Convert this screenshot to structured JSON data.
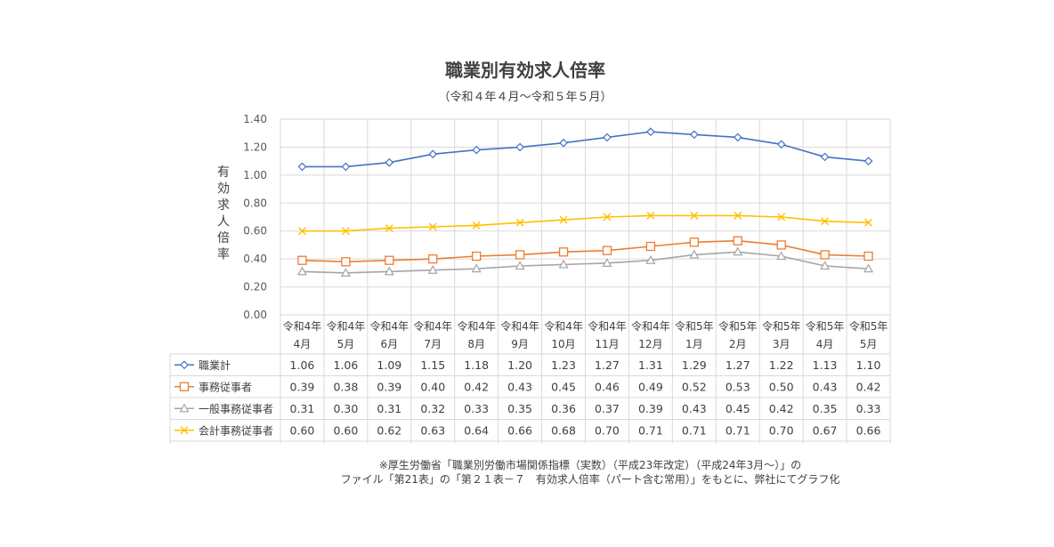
{
  "chart_data": {
    "type": "line",
    "title": "職業別有効求人倍率",
    "subtitle": "（令和４年４月～令和５年５月）",
    "ylabel": "有効求人倍率",
    "ylim": [
      0,
      1.4
    ],
    "yticks": [
      "0.00",
      "0.20",
      "0.40",
      "0.60",
      "0.80",
      "1.00",
      "1.20",
      "1.40"
    ],
    "categories": [
      [
        "令和4年",
        "4月"
      ],
      [
        "令和4年",
        "5月"
      ],
      [
        "令和4年",
        "6月"
      ],
      [
        "令和4年",
        "7月"
      ],
      [
        "令和4年",
        "8月"
      ],
      [
        "令和4年",
        "9月"
      ],
      [
        "令和4年",
        "10月"
      ],
      [
        "令和4年",
        "11月"
      ],
      [
        "令和4年",
        "12月"
      ],
      [
        "令和5年",
        "1月"
      ],
      [
        "令和5年",
        "2月"
      ],
      [
        "令和5年",
        "3月"
      ],
      [
        "令和5年",
        "4月"
      ],
      [
        "令和5年",
        "5月"
      ]
    ],
    "series": [
      {
        "name": "職業計",
        "color": "#4472C4",
        "marker": "diamond",
        "values": [
          1.06,
          1.06,
          1.09,
          1.15,
          1.18,
          1.2,
          1.23,
          1.27,
          1.31,
          1.29,
          1.27,
          1.22,
          1.13,
          1.1
        ],
        "labels": [
          "1.06",
          "1.06",
          "1.09",
          "1.15",
          "1.18",
          "1.20",
          "1.23",
          "1.27",
          "1.31",
          "1.29",
          "1.27",
          "1.22",
          "1.13",
          "1.10"
        ]
      },
      {
        "name": "事務従事者",
        "color": "#ED7D31",
        "marker": "square",
        "values": [
          0.39,
          0.38,
          0.39,
          0.4,
          0.42,
          0.43,
          0.45,
          0.46,
          0.49,
          0.52,
          0.53,
          0.5,
          0.43,
          0.42
        ],
        "labels": [
          "0.39",
          "0.38",
          "0.39",
          "0.40",
          "0.42",
          "0.43",
          "0.45",
          "0.46",
          "0.49",
          "0.52",
          "0.53",
          "0.50",
          "0.43",
          "0.42"
        ]
      },
      {
        "name": "一般事務従事者",
        "color": "#A5A5A5",
        "marker": "triangle",
        "values": [
          0.31,
          0.3,
          0.31,
          0.32,
          0.33,
          0.35,
          0.36,
          0.37,
          0.39,
          0.43,
          0.45,
          0.42,
          0.35,
          0.33
        ],
        "labels": [
          "0.31",
          "0.30",
          "0.31",
          "0.32",
          "0.33",
          "0.35",
          "0.36",
          "0.37",
          "0.39",
          "0.43",
          "0.45",
          "0.42",
          "0.35",
          "0.33"
        ]
      },
      {
        "name": "会計事務従事者",
        "color": "#FFC000",
        "marker": "cross",
        "values": [
          0.6,
          0.6,
          0.62,
          0.63,
          0.64,
          0.66,
          0.68,
          0.7,
          0.71,
          0.71,
          0.71,
          0.7,
          0.67,
          0.66
        ],
        "labels": [
          "0.60",
          "0.60",
          "0.62",
          "0.63",
          "0.64",
          "0.66",
          "0.68",
          "0.70",
          "0.71",
          "0.71",
          "0.71",
          "0.70",
          "0.67",
          "0.66"
        ]
      }
    ],
    "grid": true,
    "legend": "data-table"
  },
  "footnote": [
    "※厚生労働省「職業別労働市場関係指標（実数）（平成23年改定）（平成24年3月～）」の",
    "ファイル「第21表」の「第２１表－７　有効求人倍率（パート含む常用）」をもとに、弊社にてグラフ化"
  ]
}
